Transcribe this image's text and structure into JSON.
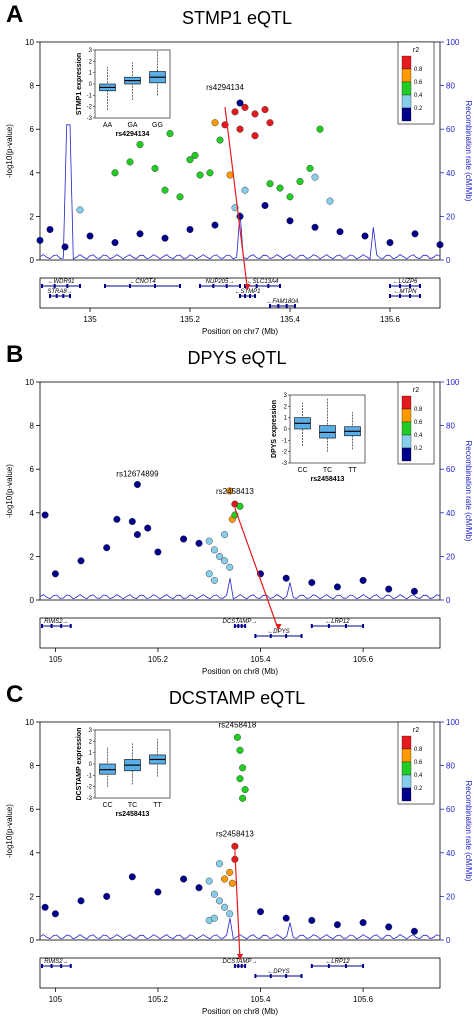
{
  "figure": {
    "panels": [
      {
        "letter": "A",
        "title": "STMP1 eQTL",
        "chrom_label": "Position on chr7 (Mb)",
        "xlim": [
          134.9,
          135.7
        ],
        "xticks": [
          "135",
          "135.2",
          "135.4",
          "135.6"
        ],
        "lead_snp": "rs4294134",
        "lead_extra": "",
        "target_gene": "STMP1",
        "genes_row1": [
          {
            "name": "WDR91",
            "start": 134.9,
            "end": 134.98,
            "dir": "left"
          },
          {
            "name": "CNOT4",
            "start": 135.03,
            "end": 135.18,
            "dir": "left"
          },
          {
            "name": "NUP205",
            "start": 135.22,
            "end": 135.3,
            "dir": "right"
          },
          {
            "name": "SLC13A4",
            "start": 135.31,
            "end": 135.38,
            "dir": "left"
          },
          {
            "name": "LUZP6",
            "start": 135.6,
            "end": 135.66,
            "dir": "left"
          }
        ],
        "genes_row2": [
          {
            "name": "STRA8",
            "start": 134.92,
            "end": 134.96,
            "dir": "right"
          },
          {
            "name": "STMP1",
            "start": 135.3,
            "end": 135.33,
            "dir": "left"
          },
          {
            "name": "MTPN",
            "start": 135.6,
            "end": 135.66,
            "dir": "left"
          }
        ],
        "genes_row3": [
          {
            "name": "FAM180A",
            "start": 135.36,
            "end": 135.41,
            "dir": "left"
          }
        ],
        "inset": {
          "ylabel": "STMP1 expression",
          "xlabel": "rs4294134",
          "yticks": [
            "3",
            "2",
            "1",
            "0",
            "-1",
            "-2",
            "-3"
          ],
          "groups": [
            "AA",
            "GA",
            "GG"
          ]
        }
      },
      {
        "letter": "B",
        "title": "DPYS eQTL",
        "chrom_label": "Position on chr8 (Mb)",
        "xlim": [
          104.97,
          105.75
        ],
        "xticks": [
          "105",
          "105.2",
          "105.4",
          "105.6"
        ],
        "lead_snp": "rs2458413",
        "lead_extra": "rs12674899",
        "target_gene": "DPYS",
        "genes_row1": [
          {
            "name": "RIMS2",
            "start": 104.97,
            "end": 105.03,
            "dir": "right"
          },
          {
            "name": "DCSTAMP",
            "start": 105.35,
            "end": 105.37,
            "dir": "right"
          },
          {
            "name": "LRP12",
            "start": 105.5,
            "end": 105.6,
            "dir": "left"
          }
        ],
        "genes_row2": [
          {
            "name": "DPYS",
            "start": 105.39,
            "end": 105.48,
            "dir": "left"
          }
        ],
        "genes_row3": [],
        "inset": {
          "ylabel": "DPYS expression",
          "xlabel": "rs2458413",
          "yticks": [
            "3",
            "2",
            "1",
            "0",
            "-1",
            "-2",
            "-3"
          ],
          "groups": [
            "CC",
            "TC",
            "TT"
          ]
        }
      },
      {
        "letter": "C",
        "title": "DCSTAMP eQTL",
        "chrom_label": "Position on chr8 (Mb)",
        "xlim": [
          104.97,
          105.75
        ],
        "xticks": [
          "105",
          "105.2",
          "105.4",
          "105.6"
        ],
        "lead_snp": "rs2458413",
        "lead_extra": "rs2458418",
        "target_gene": "DCSTAMP",
        "genes_row1": [
          {
            "name": "RIMS2",
            "start": 104.97,
            "end": 105.03,
            "dir": "right"
          },
          {
            "name": "DCSTAMP",
            "start": 105.35,
            "end": 105.37,
            "dir": "right"
          },
          {
            "name": "LRP12",
            "start": 105.5,
            "end": 105.6,
            "dir": "left"
          }
        ],
        "genes_row2": [
          {
            "name": "DPYS",
            "start": 105.39,
            "end": 105.48,
            "dir": "left"
          }
        ],
        "genes_row3": [],
        "inset": {
          "ylabel": "DCSTAMP expression",
          "xlabel": "rs2458413",
          "yticks": [
            "3",
            "2",
            "1",
            "0",
            "-1",
            "-2",
            "-3"
          ],
          "groups": [
            "CC",
            "TC",
            "TT"
          ]
        }
      }
    ],
    "common": {
      "ylabel": "-log10(p-value)",
      "ylabel_right": "Recombination rate (cM/Mb)",
      "yticks_left": [
        "0",
        "2",
        "4",
        "6",
        "8",
        "10"
      ],
      "yticks_right": [
        "0",
        "20",
        "40",
        "60",
        "80",
        "100"
      ],
      "legend_title": "r2",
      "legend_ticks": [
        "0.8",
        "0.6",
        "0.4",
        "0.2"
      ]
    }
  },
  "chart_data": [
    {
      "type": "scatter",
      "title": "STMP1 eQTL",
      "xlabel": "Position on chr7 (Mb)",
      "ylabel": "-log10(p-value)",
      "ylabel_right": "Recombination rate (cM/Mb)",
      "xlim": [
        134.9,
        135.7
      ],
      "ylim": [
        0,
        10
      ],
      "ylim_right": [
        0,
        100
      ],
      "series": [
        {
          "name": "0.8",
          "color": "#e41a1c",
          "x": [
            135.27,
            135.29,
            135.31,
            135.33,
            135.35,
            135.36,
            135.3,
            135.33
          ],
          "y": [
            6.2,
            6.8,
            7.0,
            6.7,
            6.9,
            6.3,
            6.0,
            5.7
          ]
        },
        {
          "name": "0.6",
          "color": "#ff9900",
          "x": [
            135.25,
            135.28
          ],
          "y": [
            6.3,
            3.9
          ]
        },
        {
          "name": "0.4",
          "color": "#22cc22",
          "x": [
            135.05,
            135.08,
            135.1,
            135.13,
            135.15,
            135.18,
            135.2,
            135.22,
            135.24,
            135.26,
            135.36,
            135.38,
            135.4,
            135.42,
            135.44,
            135.46,
            135.16,
            135.21
          ],
          "y": [
            4.0,
            4.5,
            5.3,
            4.2,
            3.2,
            2.9,
            4.6,
            3.9,
            4.0,
            5.5,
            3.5,
            3.3,
            2.9,
            3.6,
            4.2,
            6.0,
            5.8,
            4.8
          ]
        },
        {
          "name": "0.2",
          "color": "#87ceeb",
          "x": [
            134.98,
            135.29,
            135.31,
            135.45,
            135.48
          ],
          "y": [
            2.3,
            2.4,
            3.2,
            3.8,
            2.7
          ]
        },
        {
          "name": "0",
          "color": "#00008b",
          "x": [
            134.9,
            134.92,
            134.95,
            135.0,
            135.05,
            135.1,
            135.15,
            135.2,
            135.25,
            135.3,
            135.35,
            135.4,
            135.45,
            135.5,
            135.55,
            135.6,
            135.65,
            135.7,
            135.3
          ],
          "y": [
            0.9,
            1.4,
            0.6,
            1.1,
            0.8,
            1.2,
            1.0,
            1.4,
            1.6,
            2.0,
            2.5,
            1.8,
            1.5,
            1.3,
            1.1,
            0.8,
            1.2,
            0.7,
            7.2
          ]
        }
      ],
      "annotations": [
        "rs4294134"
      ],
      "inset_boxplot": {
        "ylabel": "STMP1 expression",
        "xlabel": "rs4294134",
        "categories": [
          "AA",
          "GA",
          "GG"
        ],
        "median": [
          -0.3,
          0.3,
          0.6
        ],
        "q1": [
          -0.6,
          0.0,
          0.1
        ],
        "q3": [
          0.0,
          0.6,
          1.1
        ],
        "whisker_low": [
          -2.3,
          -1.4,
          -1.0
        ],
        "whisker_high": [
          1.5,
          1.9,
          2.9
        ]
      }
    },
    {
      "type": "scatter",
      "title": "DPYS eQTL",
      "xlabel": "Position on chr8 (Mb)",
      "ylabel": "-log10(p-value)",
      "ylabel_right": "Recombination rate (cM/Mb)",
      "xlim": [
        104.97,
        105.75
      ],
      "ylim": [
        0,
        10
      ],
      "ylim_right": [
        0,
        100
      ],
      "series": [
        {
          "name": "0.8",
          "color": "#e41a1c",
          "x": [
            105.35
          ],
          "y": [
            4.4
          ]
        },
        {
          "name": "0.6",
          "color": "#ff9900",
          "x": [
            105.34,
            105.345
          ],
          "y": [
            5.0,
            3.7
          ]
        },
        {
          "name": "0.4",
          "color": "#22cc22",
          "x": [
            105.36,
            105.35
          ],
          "y": [
            4.3,
            3.9
          ]
        },
        {
          "name": "0.2",
          "color": "#87ceeb",
          "x": [
            105.3,
            105.31,
            105.32,
            105.33,
            105.34,
            105.3,
            105.33,
            105.31
          ],
          "y": [
            2.7,
            2.3,
            2.0,
            1.8,
            1.5,
            1.2,
            3.0,
            0.9
          ]
        },
        {
          "name": "0",
          "color": "#00008b",
          "x": [
            104.98,
            105.0,
            105.05,
            105.1,
            105.12,
            105.15,
            105.16,
            105.18,
            105.2,
            105.25,
            105.28,
            105.4,
            105.45,
            105.5,
            105.55,
            105.6,
            105.65,
            105.7,
            105.16
          ],
          "y": [
            3.9,
            1.2,
            1.8,
            2.4,
            3.7,
            3.6,
            3.0,
            3.3,
            2.2,
            2.8,
            2.6,
            1.2,
            1.0,
            0.8,
            0.6,
            0.9,
            0.5,
            0.4,
            5.3
          ]
        }
      ],
      "annotations": [
        "rs12674899",
        "rs2458413"
      ],
      "inset_boxplot": {
        "ylabel": "DPYS expression",
        "xlabel": "rs2458413",
        "categories": [
          "CC",
          "TC",
          "TT"
        ],
        "median": [
          0.5,
          -0.3,
          -0.2
        ],
        "q1": [
          0.0,
          -0.8,
          -0.6
        ],
        "q3": [
          1.0,
          0.3,
          0.2
        ],
        "whisker_low": [
          -1.5,
          -2.0,
          -1.8
        ],
        "whisker_high": [
          2.3,
          2.7,
          1.5
        ]
      }
    },
    {
      "type": "scatter",
      "title": "DCSTAMP eQTL",
      "xlabel": "Position on chr8 (Mb)",
      "ylabel": "-log10(p-value)",
      "ylabel_right": "Recombination rate (cM/Mb)",
      "xlim": [
        104.97,
        105.75
      ],
      "ylim": [
        0,
        10
      ],
      "ylim_right": [
        0,
        100
      ],
      "series": [
        {
          "name": "0.8",
          "color": "#e41a1c",
          "x": [
            105.35,
            105.35
          ],
          "y": [
            4.3,
            3.7
          ]
        },
        {
          "name": "0.6",
          "color": "#ff9900",
          "x": [
            105.33,
            105.34,
            105.345
          ],
          "y": [
            2.8,
            3.1,
            2.6
          ]
        },
        {
          "name": "0.4",
          "color": "#22cc22",
          "x": [
            105.355,
            105.36,
            105.365,
            105.36,
            105.37,
            105.365
          ],
          "y": [
            9.3,
            8.7,
            7.9,
            7.4,
            6.9,
            6.5
          ]
        },
        {
          "name": "0.2",
          "color": "#87ceeb",
          "x": [
            105.3,
            105.31,
            105.32,
            105.33,
            105.34,
            105.3,
            105.32,
            105.31
          ],
          "y": [
            2.7,
            2.1,
            1.8,
            1.5,
            1.2,
            0.9,
            3.5,
            1.0
          ]
        },
        {
          "name": "0",
          "color": "#00008b",
          "x": [
            104.98,
            105.0,
            105.05,
            105.1,
            105.15,
            105.2,
            105.25,
            105.28,
            105.4,
            105.45,
            105.5,
            105.55,
            105.6,
            105.65,
            105.7
          ],
          "y": [
            1.5,
            1.2,
            1.8,
            2.0,
            2.9,
            2.2,
            2.8,
            2.4,
            1.3,
            1.0,
            0.9,
            0.7,
            0.8,
            0.6,
            0.4
          ]
        }
      ],
      "annotations": [
        "rs2458418",
        "rs2458413"
      ],
      "inset_boxplot": {
        "ylabel": "DCSTAMP expression",
        "xlabel": "rs2458413",
        "categories": [
          "CC",
          "TC",
          "TT"
        ],
        "median": [
          -0.5,
          -0.1,
          0.4
        ],
        "q1": [
          -0.9,
          -0.6,
          0.0
        ],
        "q3": [
          0.0,
          0.4,
          0.8
        ],
        "whisker_low": [
          -2.0,
          -1.8,
          -1.1
        ],
        "whisker_high": [
          1.5,
          1.9,
          2.2
        ]
      }
    }
  ]
}
